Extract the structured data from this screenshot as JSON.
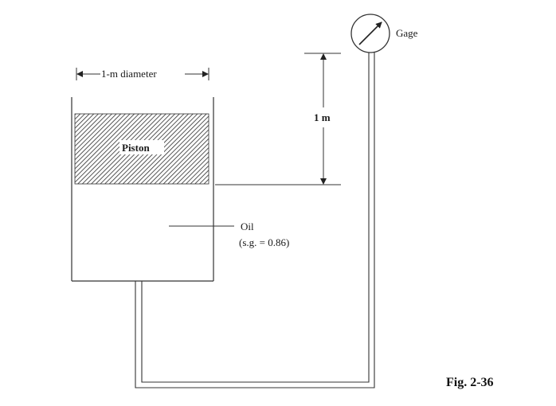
{
  "figure": {
    "caption": "Fig. 2-36",
    "labels": {
      "gage": "Gage",
      "diameter": "1-m diameter",
      "height": "1 m",
      "piston": "Piston",
      "oil": "Oil",
      "oil_sg": "(s.g. = 0.86)"
    }
  }
}
